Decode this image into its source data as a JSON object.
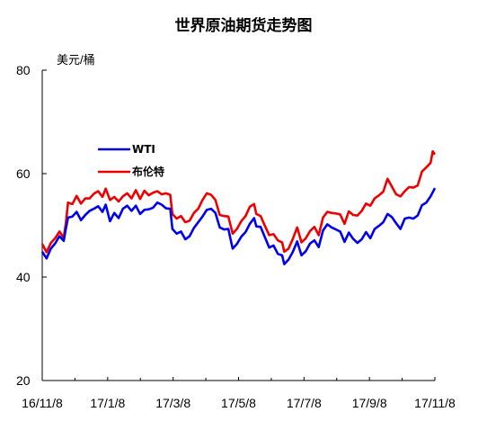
{
  "title": "世界原油期货走势图",
  "unit": "美元/桶",
  "chart_data": {
    "type": "line",
    "title": "世界原油期货走势图",
    "ylabel": "美元/桶",
    "xlabel": "",
    "ylim": [
      20,
      80
    ],
    "yticks": [
      20,
      40,
      60,
      80
    ],
    "x_tick_labels": [
      "16/11/8",
      "17/1/8",
      "17/3/8",
      "17/5/8",
      "17/7/8",
      "17/9/8",
      "17/11/8"
    ],
    "grid": false,
    "legend_position": "upper-left inside plot",
    "x_range": [
      "2016-11-08",
      "2017-11-08"
    ],
    "series": [
      {
        "name": "WTI",
        "color": "#0000ee",
        "points": [
          [
            "2016-11-08",
            44.9
          ],
          [
            "2016-11-12",
            43.6
          ],
          [
            "2016-11-16",
            45.5
          ],
          [
            "2016-11-20",
            46.5
          ],
          [
            "2016-11-24",
            47.9
          ],
          [
            "2016-11-28",
            47.0
          ],
          [
            "2016-11-30",
            49.4
          ],
          [
            "2016-12-02",
            51.5
          ],
          [
            "2016-12-06",
            51.7
          ],
          [
            "2016-12-10",
            52.6
          ],
          [
            "2016-12-14",
            51.0
          ],
          [
            "2016-12-18",
            52.0
          ],
          [
            "2016-12-22",
            52.8
          ],
          [
            "2016-12-26",
            53.2
          ],
          [
            "2016-12-30",
            53.7
          ],
          [
            "2017-01-03",
            52.6
          ],
          [
            "2017-01-06",
            54.0
          ],
          [
            "2017-01-10",
            50.8
          ],
          [
            "2017-01-14",
            52.4
          ],
          [
            "2017-01-18",
            51.4
          ],
          [
            "2017-01-22",
            53.2
          ],
          [
            "2017-01-26",
            53.8
          ],
          [
            "2017-01-30",
            52.8
          ],
          [
            "2017-02-03",
            53.8
          ],
          [
            "2017-02-07",
            52.2
          ],
          [
            "2017-02-11",
            53.0
          ],
          [
            "2017-02-15",
            53.1
          ],
          [
            "2017-02-19",
            53.4
          ],
          [
            "2017-02-23",
            54.4
          ],
          [
            "2017-02-27",
            54.0
          ],
          [
            "2017-03-03",
            53.3
          ],
          [
            "2017-03-07",
            53.2
          ],
          [
            "2017-03-09",
            49.3
          ],
          [
            "2017-03-13",
            48.4
          ],
          [
            "2017-03-17",
            48.8
          ],
          [
            "2017-03-21",
            47.3
          ],
          [
            "2017-03-25",
            47.9
          ],
          [
            "2017-03-29",
            49.5
          ],
          [
            "2017-04-02",
            50.6
          ],
          [
            "2017-04-06",
            51.7
          ],
          [
            "2017-04-10",
            53.0
          ],
          [
            "2017-04-14",
            53.2
          ],
          [
            "2017-04-18",
            52.4
          ],
          [
            "2017-04-22",
            49.6
          ],
          [
            "2017-04-26",
            49.2
          ],
          [
            "2017-04-30",
            49.3
          ],
          [
            "2017-05-04",
            45.5
          ],
          [
            "2017-05-08",
            46.4
          ],
          [
            "2017-05-12",
            47.8
          ],
          [
            "2017-05-16",
            48.7
          ],
          [
            "2017-05-20",
            50.3
          ],
          [
            "2017-05-24",
            51.4
          ],
          [
            "2017-05-26",
            49.8
          ],
          [
            "2017-05-30",
            49.7
          ],
          [
            "2017-06-03",
            47.7
          ],
          [
            "2017-06-07",
            45.7
          ],
          [
            "2017-06-11",
            46.1
          ],
          [
            "2017-06-15",
            44.5
          ],
          [
            "2017-06-19",
            44.2
          ],
          [
            "2017-06-21",
            42.5
          ],
          [
            "2017-06-25",
            43.4
          ],
          [
            "2017-06-29",
            44.9
          ],
          [
            "2017-07-03",
            46.9
          ],
          [
            "2017-07-07",
            44.2
          ],
          [
            "2017-07-11",
            45.0
          ],
          [
            "2017-07-15",
            46.5
          ],
          [
            "2017-07-19",
            47.1
          ],
          [
            "2017-07-23",
            45.8
          ],
          [
            "2017-07-27",
            49.0
          ],
          [
            "2017-07-31",
            50.2
          ],
          [
            "2017-08-04",
            49.6
          ],
          [
            "2017-08-08",
            49.2
          ],
          [
            "2017-08-12",
            48.8
          ],
          [
            "2017-08-16",
            46.8
          ],
          [
            "2017-08-20",
            48.6
          ],
          [
            "2017-08-24",
            47.4
          ],
          [
            "2017-08-28",
            46.6
          ],
          [
            "2017-09-01",
            47.3
          ],
          [
            "2017-09-05",
            48.7
          ],
          [
            "2017-09-09",
            47.5
          ],
          [
            "2017-09-13",
            49.3
          ],
          [
            "2017-09-17",
            49.9
          ],
          [
            "2017-09-21",
            50.6
          ],
          [
            "2017-09-25",
            52.2
          ],
          [
            "2017-09-29",
            51.6
          ],
          [
            "2017-10-03",
            50.4
          ],
          [
            "2017-10-07",
            49.3
          ],
          [
            "2017-10-11",
            51.3
          ],
          [
            "2017-10-15",
            51.5
          ],
          [
            "2017-10-19",
            51.3
          ],
          [
            "2017-10-23",
            51.9
          ],
          [
            "2017-10-27",
            53.9
          ],
          [
            "2017-10-31",
            54.4
          ],
          [
            "2017-11-04",
            55.6
          ],
          [
            "2017-11-08",
            57.2
          ]
        ]
      },
      {
        "name": "布伦特",
        "color": "#ee0000",
        "points": [
          [
            "2016-11-08",
            46.4
          ],
          [
            "2016-11-12",
            44.8
          ],
          [
            "2016-11-16",
            46.6
          ],
          [
            "2016-11-20",
            47.5
          ],
          [
            "2016-11-24",
            48.8
          ],
          [
            "2016-11-28",
            47.6
          ],
          [
            "2016-11-30",
            50.5
          ],
          [
            "2016-12-02",
            54.4
          ],
          [
            "2016-12-06",
            54.1
          ],
          [
            "2016-12-10",
            55.7
          ],
          [
            "2016-12-14",
            54.2
          ],
          [
            "2016-12-18",
            55.2
          ],
          [
            "2016-12-22",
            55.2
          ],
          [
            "2016-12-26",
            56.1
          ],
          [
            "2016-12-30",
            56.6
          ],
          [
            "2017-01-03",
            55.5
          ],
          [
            "2017-01-06",
            57.1
          ],
          [
            "2017-01-10",
            54.9
          ],
          [
            "2017-01-14",
            55.5
          ],
          [
            "2017-01-18",
            54.6
          ],
          [
            "2017-01-22",
            55.6
          ],
          [
            "2017-01-26",
            56.2
          ],
          [
            "2017-01-30",
            55.2
          ],
          [
            "2017-02-03",
            56.8
          ],
          [
            "2017-02-07",
            55.1
          ],
          [
            "2017-02-11",
            56.7
          ],
          [
            "2017-02-15",
            55.8
          ],
          [
            "2017-02-19",
            56.3
          ],
          [
            "2017-02-23",
            56.6
          ],
          [
            "2017-02-27",
            56.0
          ],
          [
            "2017-03-03",
            56.2
          ],
          [
            "2017-03-07",
            55.9
          ],
          [
            "2017-03-09",
            52.2
          ],
          [
            "2017-03-13",
            51.3
          ],
          [
            "2017-03-17",
            51.8
          ],
          [
            "2017-03-21",
            50.6
          ],
          [
            "2017-03-25",
            50.9
          ],
          [
            "2017-03-29",
            52.4
          ],
          [
            "2017-04-02",
            53.2
          ],
          [
            "2017-04-06",
            54.9
          ],
          [
            "2017-04-10",
            56.2
          ],
          [
            "2017-04-14",
            55.9
          ],
          [
            "2017-04-18",
            54.9
          ],
          [
            "2017-04-22",
            52.0
          ],
          [
            "2017-04-26",
            51.8
          ],
          [
            "2017-04-30",
            51.7
          ],
          [
            "2017-05-04",
            48.4
          ],
          [
            "2017-05-08",
            49.3
          ],
          [
            "2017-05-12",
            50.8
          ],
          [
            "2017-05-16",
            51.8
          ],
          [
            "2017-05-20",
            53.6
          ],
          [
            "2017-05-24",
            54.1
          ],
          [
            "2017-05-26",
            52.2
          ],
          [
            "2017-05-30",
            51.8
          ],
          [
            "2017-06-03",
            49.9
          ],
          [
            "2017-06-07",
            48.1
          ],
          [
            "2017-06-11",
            48.3
          ],
          [
            "2017-06-15",
            47.1
          ],
          [
            "2017-06-19",
            46.7
          ],
          [
            "2017-06-21",
            44.9
          ],
          [
            "2017-06-25",
            45.5
          ],
          [
            "2017-06-29",
            47.4
          ],
          [
            "2017-07-03",
            49.6
          ],
          [
            "2017-07-07",
            46.7
          ],
          [
            "2017-07-11",
            47.5
          ],
          [
            "2017-07-15",
            48.9
          ],
          [
            "2017-07-19",
            49.7
          ],
          [
            "2017-07-23",
            48.1
          ],
          [
            "2017-07-27",
            51.5
          ],
          [
            "2017-07-31",
            52.6
          ],
          [
            "2017-08-04",
            52.4
          ],
          [
            "2017-08-08",
            52.3
          ],
          [
            "2017-08-12",
            52.1
          ],
          [
            "2017-08-16",
            50.3
          ],
          [
            "2017-08-20",
            52.7
          ],
          [
            "2017-08-24",
            52.0
          ],
          [
            "2017-08-28",
            51.9
          ],
          [
            "2017-09-01",
            52.8
          ],
          [
            "2017-09-05",
            54.2
          ],
          [
            "2017-09-09",
            53.8
          ],
          [
            "2017-09-13",
            55.2
          ],
          [
            "2017-09-17",
            55.8
          ],
          [
            "2017-09-21",
            56.5
          ],
          [
            "2017-09-25",
            59.0
          ],
          [
            "2017-09-29",
            57.5
          ],
          [
            "2017-10-03",
            56.0
          ],
          [
            "2017-10-07",
            55.6
          ],
          [
            "2017-10-11",
            56.6
          ],
          [
            "2017-10-15",
            57.4
          ],
          [
            "2017-10-19",
            57.3
          ],
          [
            "2017-10-23",
            57.7
          ],
          [
            "2017-10-27",
            60.4
          ],
          [
            "2017-10-31",
            61.2
          ],
          [
            "2017-11-04",
            62.1
          ],
          [
            "2017-11-06",
            64.3
          ],
          [
            "2017-11-08",
            63.7
          ]
        ]
      }
    ]
  }
}
